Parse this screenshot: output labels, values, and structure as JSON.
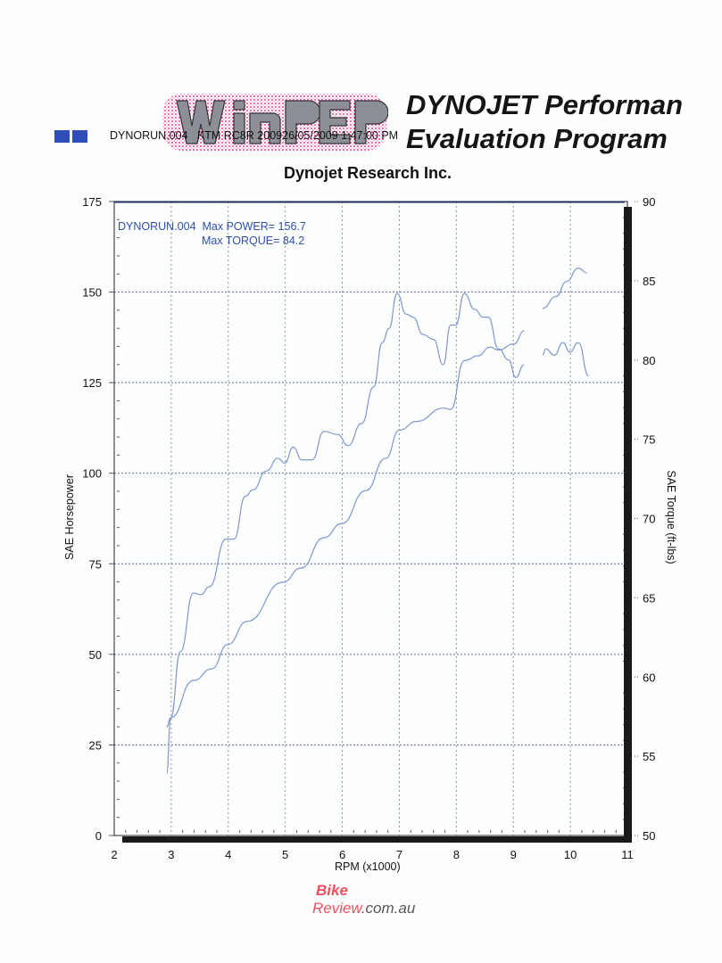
{
  "header": {
    "run_info": "DYNORUN.004   KTM RC8R 200926/05/2009 1:47:00 PM",
    "logo_text": "WinPEP",
    "title_line1": "DYNOJET Performan",
    "title_line2": "Evaluation Program",
    "subtitle": "Dynojet Research Inc."
  },
  "watermark": "BikeReview.com.au",
  "colors": {
    "curve": "#7f97cc",
    "legend": "#2d4fb0",
    "squares": "#2f4fb8"
  },
  "chart_data": {
    "type": "line",
    "title": "Dynojet Research Inc.",
    "legend": {
      "line1": "DYNORUN.004  Max POWER= 156.7",
      "line2": "Max TORQUE= 84.2",
      "placement": "top-left"
    },
    "xlabel": "RPM (x1000)",
    "ylabel": "SAE Horsepower",
    "y2label": "SAE Torque (ft-lbs)",
    "xlim": [
      2,
      11
    ],
    "ylim": [
      0,
      175
    ],
    "y2lim": [
      50,
      90
    ],
    "xticks": [
      "2",
      "3",
      "4",
      "5",
      "6",
      "7",
      "8",
      "9",
      "10",
      "11"
    ],
    "yticks": [
      "0",
      "25",
      "50",
      "75",
      "100",
      "125",
      "150",
      "175"
    ],
    "y2ticks": [
      "50",
      "55",
      "60",
      "65",
      "70",
      "75",
      "80",
      "85",
      "90"
    ],
    "grid": true,
    "series": [
      {
        "name": "SAE Horsepower",
        "axis": "left",
        "segments": [
          [
            [
              2.92,
              30.0
            ],
            [
              2.99,
              32.5
            ],
            [
              3.39,
              42.8
            ],
            [
              3.71,
              46.0
            ],
            [
              3.99,
              52.7
            ],
            [
              4.33,
              59.1
            ],
            [
              4.96,
              69.9
            ],
            [
              5.27,
              73.8
            ],
            [
              5.68,
              82.2
            ],
            [
              5.99,
              86.1
            ],
            [
              6.41,
              95.2
            ],
            [
              6.76,
              104.1
            ],
            [
              7.0,
              111.9
            ],
            [
              7.3,
              114.3
            ],
            [
              7.78,
              118.0
            ],
            [
              7.9,
              117.6
            ],
            [
              8.14,
              131.1
            ],
            [
              8.38,
              132.4
            ],
            [
              8.59,
              134.8
            ],
            [
              8.74,
              134.0
            ],
            [
              9.01,
              135.7
            ],
            [
              9.19,
              139.3
            ]
          ],
          [
            [
              9.51,
              145.5
            ],
            [
              9.75,
              148.8
            ],
            [
              9.93,
              152.9
            ],
            [
              10.14,
              156.6
            ],
            [
              10.29,
              155.3
            ]
          ]
        ]
      },
      {
        "name": "SAE Torque (ft-lbs)",
        "axis": "right",
        "segments": [
          [
            [
              2.92,
              53.9
            ],
            [
              2.99,
              57.4
            ],
            [
              3.16,
              61.6
            ],
            [
              3.39,
              65.3
            ],
            [
              3.52,
              65.2
            ],
            [
              3.67,
              65.7
            ],
            [
              3.96,
              68.7
            ],
            [
              4.1,
              68.7
            ],
            [
              4.3,
              71.4
            ],
            [
              4.43,
              71.8
            ],
            [
              4.67,
              73.0
            ],
            [
              4.87,
              73.8
            ],
            [
              4.99,
              73.5
            ],
            [
              5.14,
              74.5
            ],
            [
              5.29,
              73.7
            ],
            [
              5.47,
              73.7
            ],
            [
              5.68,
              75.5
            ],
            [
              5.92,
              75.3
            ],
            [
              6.1,
              74.6
            ],
            [
              6.34,
              76.0
            ],
            [
              6.55,
              78.3
            ],
            [
              6.7,
              81.1
            ],
            [
              6.82,
              82.0
            ],
            [
              6.96,
              84.2
            ],
            [
              7.12,
              82.9
            ],
            [
              7.24,
              82.7
            ],
            [
              7.42,
              81.6
            ],
            [
              7.6,
              81.3
            ],
            [
              7.77,
              79.7
            ],
            [
              7.9,
              82.2
            ],
            [
              7.99,
              82.2
            ],
            [
              8.14,
              84.2
            ],
            [
              8.32,
              83.2
            ],
            [
              8.47,
              82.7
            ],
            [
              8.56,
              82.7
            ],
            [
              8.74,
              80.7
            ],
            [
              8.92,
              80.0
            ],
            [
              9.04,
              78.9
            ],
            [
              9.19,
              79.7
            ]
          ],
          [
            [
              9.51,
              80.3
            ],
            [
              9.57,
              80.7
            ],
            [
              9.72,
              80.3
            ],
            [
              9.87,
              81.1
            ],
            [
              9.99,
              80.5
            ],
            [
              10.14,
              81.1
            ],
            [
              10.32,
              79.0
            ]
          ]
        ]
      }
    ]
  }
}
